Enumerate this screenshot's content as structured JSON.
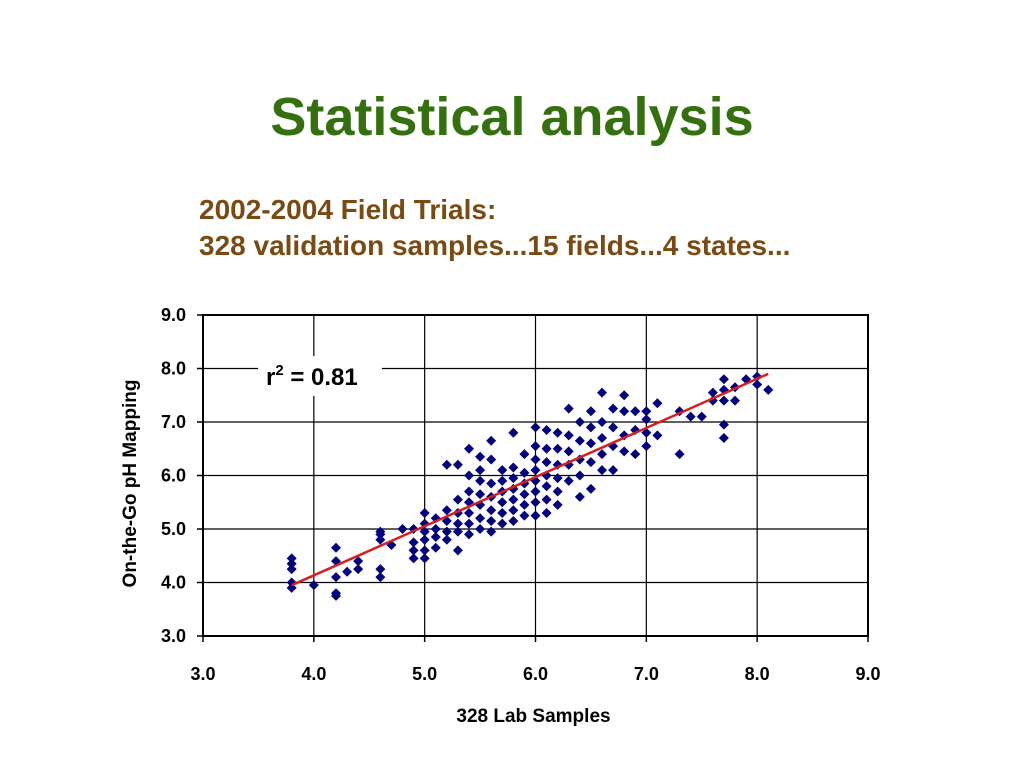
{
  "slide": {
    "title": "Statistical analysis",
    "subtitle_line1": "2002-2004 Field Trials:",
    "subtitle_line2": "328 validation samples...15 fields...4 states..."
  },
  "chart_data": {
    "type": "scatter",
    "xlabel": "328 Lab Samples",
    "ylabel": "On-the-Go pH Mapping",
    "xlim": [
      3.0,
      9.0
    ],
    "ylim": [
      3.0,
      9.0
    ],
    "xticks": [
      "3.0",
      "4.0",
      "5.0",
      "6.0",
      "7.0",
      "8.0",
      "9.0"
    ],
    "yticks": [
      "3.0",
      "4.0",
      "5.0",
      "6.0",
      "7.0",
      "8.0",
      "9.0"
    ],
    "grid": true,
    "legend": "none",
    "annotation": {
      "base": "r",
      "superscript": "2",
      "rest": " = 0.81"
    },
    "marker_color": "#000080",
    "trendline": {
      "color": "#d42020",
      "x": [
        3.8,
        8.1
      ],
      "y": [
        3.95,
        7.9
      ]
    },
    "series": [
      {
        "points": [
          [
            3.8,
            4.45
          ],
          [
            3.8,
            4.35
          ],
          [
            3.8,
            4.25
          ],
          [
            3.8,
            4.0
          ],
          [
            3.8,
            3.9
          ],
          [
            4.0,
            3.95
          ],
          [
            4.2,
            4.65
          ],
          [
            4.2,
            4.4
          ],
          [
            4.2,
            4.1
          ],
          [
            4.2,
            3.8
          ],
          [
            4.2,
            3.75
          ],
          [
            4.3,
            4.2
          ],
          [
            4.4,
            4.4
          ],
          [
            4.4,
            4.25
          ],
          [
            4.6,
            4.95
          ],
          [
            4.6,
            4.9
          ],
          [
            4.6,
            4.8
          ],
          [
            4.6,
            4.25
          ],
          [
            4.6,
            4.1
          ],
          [
            4.7,
            4.7
          ],
          [
            4.8,
            5.0
          ],
          [
            4.9,
            5.0
          ],
          [
            4.9,
            4.75
          ],
          [
            4.9,
            4.6
          ],
          [
            4.9,
            4.45
          ],
          [
            5.0,
            5.3
          ],
          [
            5.0,
            5.1
          ],
          [
            5.0,
            4.95
          ],
          [
            5.0,
            4.8
          ],
          [
            5.0,
            4.6
          ],
          [
            5.0,
            4.45
          ],
          [
            5.1,
            5.2
          ],
          [
            5.1,
            5.0
          ],
          [
            5.1,
            4.85
          ],
          [
            5.1,
            4.65
          ],
          [
            5.2,
            5.35
          ],
          [
            5.2,
            5.15
          ],
          [
            5.2,
            4.95
          ],
          [
            5.2,
            4.8
          ],
          [
            5.2,
            6.2
          ],
          [
            5.3,
            6.2
          ],
          [
            5.3,
            5.55
          ],
          [
            5.3,
            5.3
          ],
          [
            5.3,
            5.1
          ],
          [
            5.3,
            4.95
          ],
          [
            5.3,
            4.6
          ],
          [
            5.4,
            6.5
          ],
          [
            5.4,
            6.0
          ],
          [
            5.4,
            5.7
          ],
          [
            5.4,
            5.5
          ],
          [
            5.4,
            5.3
          ],
          [
            5.4,
            5.1
          ],
          [
            5.4,
            4.9
          ],
          [
            5.5,
            6.35
          ],
          [
            5.5,
            6.1
          ],
          [
            5.5,
            5.9
          ],
          [
            5.5,
            5.65
          ],
          [
            5.5,
            5.45
          ],
          [
            5.5,
            5.2
          ],
          [
            5.5,
            5.0
          ],
          [
            5.6,
            6.65
          ],
          [
            5.6,
            6.3
          ],
          [
            5.6,
            5.85
          ],
          [
            5.6,
            5.6
          ],
          [
            5.6,
            5.35
          ],
          [
            5.6,
            5.15
          ],
          [
            5.6,
            4.95
          ],
          [
            5.7,
            6.1
          ],
          [
            5.7,
            5.9
          ],
          [
            5.7,
            5.7
          ],
          [
            5.7,
            5.5
          ],
          [
            5.7,
            5.3
          ],
          [
            5.7,
            5.1
          ],
          [
            5.8,
            6.8
          ],
          [
            5.8,
            6.15
          ],
          [
            5.8,
            5.95
          ],
          [
            5.8,
            5.75
          ],
          [
            5.8,
            5.55
          ],
          [
            5.8,
            5.35
          ],
          [
            5.8,
            5.15
          ],
          [
            5.9,
            6.4
          ],
          [
            5.9,
            6.05
          ],
          [
            5.9,
            5.85
          ],
          [
            5.9,
            5.65
          ],
          [
            5.9,
            5.45
          ],
          [
            5.9,
            5.25
          ],
          [
            6.0,
            6.9
          ],
          [
            6.0,
            6.55
          ],
          [
            6.0,
            6.3
          ],
          [
            6.0,
            6.1
          ],
          [
            6.0,
            5.9
          ],
          [
            6.0,
            5.7
          ],
          [
            6.0,
            5.5
          ],
          [
            6.0,
            5.25
          ],
          [
            6.1,
            6.85
          ],
          [
            6.1,
            6.5
          ],
          [
            6.1,
            6.25
          ],
          [
            6.1,
            6.0
          ],
          [
            6.1,
            5.8
          ],
          [
            6.1,
            5.55
          ],
          [
            6.1,
            5.3
          ],
          [
            6.2,
            6.8
          ],
          [
            6.2,
            6.5
          ],
          [
            6.2,
            6.2
          ],
          [
            6.2,
            5.95
          ],
          [
            6.2,
            5.7
          ],
          [
            6.2,
            5.45
          ],
          [
            6.3,
            7.25
          ],
          [
            6.3,
            6.75
          ],
          [
            6.3,
            6.45
          ],
          [
            6.3,
            6.2
          ],
          [
            6.3,
            5.9
          ],
          [
            6.4,
            7.0
          ],
          [
            6.4,
            6.65
          ],
          [
            6.4,
            6.3
          ],
          [
            6.4,
            6.0
          ],
          [
            6.4,
            5.6
          ],
          [
            6.5,
            7.2
          ],
          [
            6.5,
            6.9
          ],
          [
            6.5,
            6.6
          ],
          [
            6.5,
            6.25
          ],
          [
            6.5,
            5.75
          ],
          [
            6.6,
            7.55
          ],
          [
            6.6,
            7.0
          ],
          [
            6.6,
            6.7
          ],
          [
            6.6,
            6.4
          ],
          [
            6.6,
            6.1
          ],
          [
            6.7,
            7.25
          ],
          [
            6.7,
            6.9
          ],
          [
            6.7,
            6.55
          ],
          [
            6.7,
            6.1
          ],
          [
            6.8,
            7.5
          ],
          [
            6.8,
            7.2
          ],
          [
            6.8,
            6.75
          ],
          [
            6.8,
            6.45
          ],
          [
            6.9,
            7.2
          ],
          [
            6.9,
            6.85
          ],
          [
            6.9,
            6.4
          ],
          [
            7.0,
            7.2
          ],
          [
            7.0,
            7.05
          ],
          [
            7.0,
            6.8
          ],
          [
            7.0,
            6.55
          ],
          [
            7.1,
            7.35
          ],
          [
            7.1,
            6.75
          ],
          [
            7.3,
            7.2
          ],
          [
            7.3,
            6.4
          ],
          [
            7.4,
            7.1
          ],
          [
            7.5,
            7.1
          ],
          [
            7.6,
            7.55
          ],
          [
            7.6,
            7.4
          ],
          [
            7.7,
            7.8
          ],
          [
            7.7,
            7.6
          ],
          [
            7.7,
            7.4
          ],
          [
            7.7,
            6.95
          ],
          [
            7.7,
            6.7
          ],
          [
            7.8,
            7.65
          ],
          [
            7.8,
            7.4
          ],
          [
            7.9,
            7.8
          ],
          [
            8.0,
            7.85
          ],
          [
            8.0,
            7.7
          ],
          [
            8.1,
            7.6
          ]
        ]
      }
    ]
  }
}
